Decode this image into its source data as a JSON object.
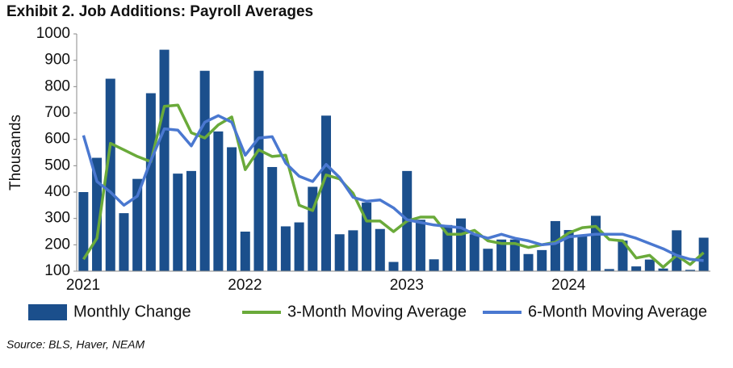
{
  "chart_data": {
    "type": "bar_line",
    "title": "Exhibit 2. Job Additions: Payroll Averages",
    "y_label": "Thousands",
    "source": "Source: BLS, Haver, NEAM",
    "categories": [
      "2021",
      null,
      null,
      null,
      null,
      null,
      null,
      null,
      null,
      null,
      null,
      null,
      "2022",
      null,
      null,
      null,
      null,
      null,
      null,
      null,
      null,
      null,
      null,
      null,
      "2023",
      null,
      null,
      null,
      null,
      null,
      null,
      null,
      null,
      null,
      null,
      null,
      "2024",
      null,
      null,
      null,
      null,
      null,
      null,
      null,
      null,
      null,
      null
    ],
    "series": [
      {
        "name": "Monthly Change",
        "color": "#1b4f8c",
        "kind": "bar",
        "values": [
          400,
          530,
          830,
          320,
          450,
          775,
          940,
          470,
          480,
          860,
          630,
          570,
          250,
          860,
          495,
          270,
          285,
          420,
          690,
          240,
          255,
          360,
          260,
          135,
          480,
          295,
          145,
          275,
          300,
          240,
          185,
          220,
          220,
          165,
          180,
          290,
          256,
          236,
          310,
          108,
          216,
          118,
          144,
          110,
          255,
          105,
          227
        ]
      },
      {
        "name": "3-Month Moving Average",
        "color": "#6aaa3a",
        "kind": "line",
        "values": [
          145,
          225,
          585,
          560,
          535,
          515,
          725,
          730,
          625,
          605,
          655,
          685,
          485,
          560,
          535,
          540,
          350,
          330,
          465,
          450,
          395,
          290,
          290,
          250,
          290,
          305,
          305,
          240,
          240,
          255,
          215,
          205,
          205,
          190,
          200,
          210,
          245,
          265,
          270,
          220,
          215,
          150,
          160,
          115,
          160,
          125,
          170
        ]
      },
      {
        "name": "6-Month Moving Average",
        "color": "#4a78d0",
        "kind": "line",
        "values": [
          615,
          440,
          400,
          350,
          385,
          520,
          640,
          635,
          575,
          665,
          690,
          665,
          540,
          605,
          610,
          510,
          460,
          440,
          505,
          455,
          380,
          365,
          370,
          340,
          295,
          285,
          275,
          270,
          265,
          240,
          225,
          240,
          225,
          215,
          200,
          205,
          230,
          235,
          240,
          240,
          240,
          225,
          205,
          185,
          160,
          145,
          140
        ]
      }
    ],
    "ylim": [
      100,
      1000
    ],
    "yticks": [
      100,
      200,
      300,
      400,
      500,
      600,
      700,
      800,
      900,
      1000
    ],
    "grid": false,
    "legend": "bottom"
  }
}
